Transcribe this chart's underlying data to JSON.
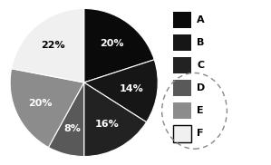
{
  "slices": [
    20,
    14,
    16,
    8,
    20,
    22
  ],
  "labels": [
    "20%",
    "14%",
    "16%",
    "8%",
    "20%",
    "22%"
  ],
  "legend_labels": [
    "A",
    "B",
    "C",
    "D",
    "E",
    "F"
  ],
  "colors": [
    "#0a0a0a",
    "#161616",
    "#222222",
    "#595959",
    "#8c8c8c",
    "#f0f0f0"
  ],
  "label_colors": [
    "white",
    "white",
    "white",
    "white",
    "white",
    "black"
  ],
  "startangle": 90,
  "background_color": "#ffffff",
  "label_fontsize": 8,
  "legend_fontsize": 8
}
